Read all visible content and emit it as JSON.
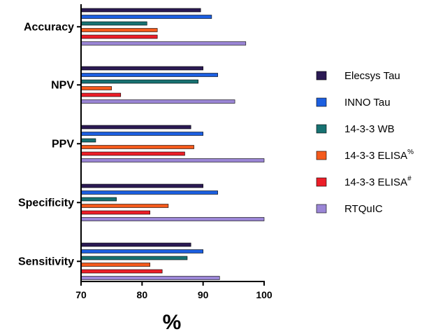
{
  "chart_data": {
    "type": "bar",
    "orientation": "horizontal",
    "title": "",
    "xlabel": "%",
    "ylabel": "",
    "xlim": [
      70,
      100
    ],
    "xticks": [
      70,
      80,
      90,
      100
    ],
    "grid": false,
    "legend_position": "right",
    "categories": [
      "Accuracy",
      "NPV",
      "PPV",
      "Specificity",
      "Sensitivity"
    ],
    "series": [
      {
        "name": "Elecsys Tau",
        "sup": "",
        "color": "#2b1a54",
        "values": [
          89.6,
          90.0,
          88.0,
          90.0,
          88.0
        ]
      },
      {
        "name": "INNO Tau",
        "sup": "",
        "color": "#1c5fe0",
        "values": [
          91.4,
          92.4,
          90.0,
          92.4,
          90.0
        ]
      },
      {
        "name": "14-3-3 WB",
        "sup": "",
        "color": "#177272",
        "values": [
          80.8,
          89.2,
          72.4,
          75.8,
          87.4
        ]
      },
      {
        "name": "14-3-3 ELISA",
        "sup": "%",
        "color": "#f45a1c",
        "values": [
          82.5,
          75.0,
          88.5,
          84.3,
          81.3
        ]
      },
      {
        "name": "14-3-3 ELISA",
        "sup": "#",
        "color": "#ec1e28",
        "values": [
          82.5,
          76.5,
          87.0,
          81.3,
          83.3
        ]
      },
      {
        "name": "RTQuIC",
        "sup": "",
        "color": "#9b86d6",
        "values": [
          97.0,
          95.2,
          100.0,
          100.0,
          92.7
        ]
      }
    ]
  }
}
